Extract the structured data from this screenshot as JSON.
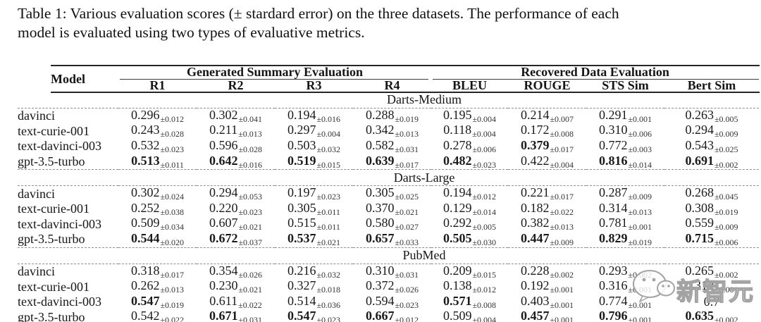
{
  "caption": {
    "line1": "Table 1: Various evaluation scores (± stardard error) on the three datasets. The performance of each",
    "line2": "model is evaluated using two types of evaluative metrics."
  },
  "table": {
    "model_header": "Model",
    "group_headers": [
      {
        "label": "Generated Summary Evaluation",
        "span": 4
      },
      {
        "label": "Recovered Data Evaluation",
        "span": 4
      }
    ],
    "metric_headers": [
      "R1",
      "R2",
      "R3",
      "R4",
      "BLEU",
      "ROUGE",
      "STS Sim",
      "Bert Sim"
    ],
    "sections": [
      {
        "name": "Darts-Medium",
        "rows": [
          {
            "model": "davinci",
            "cells": [
              {
                "v": "0.296",
                "e": "±0.012",
                "b": 0
              },
              {
                "v": "0.302",
                "e": "±0.041",
                "b": 0
              },
              {
                "v": "0.194",
                "e": "±0.016",
                "b": 0
              },
              {
                "v": "0.288",
                "e": "±0.019",
                "b": 0
              },
              {
                "v": "0.195",
                "e": "±0.004",
                "b": 0
              },
              {
                "v": "0.214",
                "e": "±0.007",
                "b": 0
              },
              {
                "v": "0.291",
                "e": "±0.001",
                "b": 0
              },
              {
                "v": "0.263",
                "e": "±0.005",
                "b": 0
              }
            ]
          },
          {
            "model": "text-curie-001",
            "cells": [
              {
                "v": "0.243",
                "e": "±0.028",
                "b": 0
              },
              {
                "v": "0.211",
                "e": "±0.013",
                "b": 0
              },
              {
                "v": "0.297",
                "e": "±0.004",
                "b": 0
              },
              {
                "v": "0.342",
                "e": "±0.013",
                "b": 0
              },
              {
                "v": "0.118",
                "e": "±0.004",
                "b": 0
              },
              {
                "v": "0.172",
                "e": "±0.008",
                "b": 0
              },
              {
                "v": "0.310",
                "e": "±0.006",
                "b": 0
              },
              {
                "v": "0.294",
                "e": "±0.009",
                "b": 0
              }
            ]
          },
          {
            "model": "text-davinci-003",
            "cells": [
              {
                "v": "0.532",
                "e": "±0.023",
                "b": 0
              },
              {
                "v": "0.596",
                "e": "±0.028",
                "b": 0
              },
              {
                "v": "0.503",
                "e": "±0.032",
                "b": 0
              },
              {
                "v": "0.582",
                "e": "±0.031",
                "b": 0
              },
              {
                "v": "0.278",
                "e": "±0.006",
                "b": 0
              },
              {
                "v": "0.379",
                "e": "±0.017",
                "b": 1
              },
              {
                "v": "0.772",
                "e": "±0.003",
                "b": 0
              },
              {
                "v": "0.543",
                "e": "±0.025",
                "b": 0
              }
            ]
          },
          {
            "model": "gpt-3.5-turbo",
            "cells": [
              {
                "v": "0.513",
                "e": "±0.011",
                "b": 1
              },
              {
                "v": "0.642",
                "e": "±0.016",
                "b": 1
              },
              {
                "v": "0.519",
                "e": "±0.015",
                "b": 1
              },
              {
                "v": "0.639",
                "e": "±0.017",
                "b": 1
              },
              {
                "v": "0.482",
                "e": "±0.023",
                "b": 1
              },
              {
                "v": "0.422",
                "e": "±0.004",
                "b": 0
              },
              {
                "v": "0.816",
                "e": "±0.014",
                "b": 1
              },
              {
                "v": "0.691",
                "e": "±0.002",
                "b": 1
              }
            ]
          }
        ]
      },
      {
        "name": "Darts-Large",
        "rows": [
          {
            "model": "davinci",
            "cells": [
              {
                "v": "0.302",
                "e": "±0.024",
                "b": 0
              },
              {
                "v": "0.294",
                "e": "±0.053",
                "b": 0
              },
              {
                "v": "0.197",
                "e": "±0.023",
                "b": 0
              },
              {
                "v": "0.305",
                "e": "±0.025",
                "b": 0
              },
              {
                "v": "0.194",
                "e": "±0.012",
                "b": 0
              },
              {
                "v": "0.221",
                "e": "±0.017",
                "b": 0
              },
              {
                "v": "0.287",
                "e": "±0.009",
                "b": 0
              },
              {
                "v": "0.268",
                "e": "±0.045",
                "b": 0
              }
            ]
          },
          {
            "model": "text-curie-001",
            "cells": [
              {
                "v": "0.252",
                "e": "±0.038",
                "b": 0
              },
              {
                "v": "0.220",
                "e": "±0.023",
                "b": 0
              },
              {
                "v": "0.305",
                "e": "±0.011",
                "b": 0
              },
              {
                "v": "0.370",
                "e": "±0.021",
                "b": 0
              },
              {
                "v": "0.129",
                "e": "±0.014",
                "b": 0
              },
              {
                "v": "0.182",
                "e": "±0.022",
                "b": 0
              },
              {
                "v": "0.314",
                "e": "±0.013",
                "b": 0
              },
              {
                "v": "0.308",
                "e": "±0.019",
                "b": 0
              }
            ]
          },
          {
            "model": "text-davinci-003",
            "cells": [
              {
                "v": "0.509",
                "e": "±0.034",
                "b": 0
              },
              {
                "v": "0.607",
                "e": "±0.021",
                "b": 0
              },
              {
                "v": "0.515",
                "e": "±0.011",
                "b": 0
              },
              {
                "v": "0.580",
                "e": "±0.027",
                "b": 0
              },
              {
                "v": "0.292",
                "e": "±0.005",
                "b": 0
              },
              {
                "v": "0.382",
                "e": "±0.013",
                "b": 0
              },
              {
                "v": "0.781",
                "e": "±0.001",
                "b": 0
              },
              {
                "v": "0.559",
                "e": "±0.009",
                "b": 0
              }
            ]
          },
          {
            "model": "gpt-3.5-turbo",
            "cells": [
              {
                "v": "0.544",
                "e": "±0.020",
                "b": 1
              },
              {
                "v": "0.672",
                "e": "±0.037",
                "b": 1
              },
              {
                "v": "0.537",
                "e": "±0.021",
                "b": 1
              },
              {
                "v": "0.657",
                "e": "±0.033",
                "b": 1
              },
              {
                "v": "0.505",
                "e": "±0.030",
                "b": 1
              },
              {
                "v": "0.447",
                "e": "±0.009",
                "b": 1
              },
              {
                "v": "0.829",
                "e": "±0.019",
                "b": 1
              },
              {
                "v": "0.715",
                "e": "±0.006",
                "b": 1
              }
            ]
          }
        ]
      },
      {
        "name": "PubMed",
        "rows": [
          {
            "model": "davinci",
            "cells": [
              {
                "v": "0.318",
                "e": "±0.017",
                "b": 0
              },
              {
                "v": "0.354",
                "e": "±0.026",
                "b": 0
              },
              {
                "v": "0.216",
                "e": "±0.032",
                "b": 0
              },
              {
                "v": "0.310",
                "e": "±0.031",
                "b": 0
              },
              {
                "v": "0.209",
                "e": "±0.015",
                "b": 0
              },
              {
                "v": "0.228",
                "e": "±0.002",
                "b": 0
              },
              {
                "v": "0.293",
                "e": "±0.002",
                "b": 0
              },
              {
                "v": "0.265",
                "e": "±0.002",
                "b": 0
              }
            ]
          },
          {
            "model": "text-curie-001",
            "cells": [
              {
                "v": "0.262",
                "e": "±0.013",
                "b": 0
              },
              {
                "v": "0.230",
                "e": "±0.021",
                "b": 0
              },
              {
                "v": "0.327",
                "e": "±0.018",
                "b": 0
              },
              {
                "v": "0.372",
                "e": "±0.026",
                "b": 0
              },
              {
                "v": "0.138",
                "e": "±0.012",
                "b": 0
              },
              {
                "v": "0.192",
                "e": "±0.001",
                "b": 0
              },
              {
                "v": "0.316",
                "e": "±0.001",
                "b": 0
              },
              {
                "v": "0.310",
                "e": "±0.001",
                "b": 0
              }
            ]
          },
          {
            "model": "text-davinci-003",
            "cells": [
              {
                "v": "0.547",
                "e": "±0.019",
                "b": 1
              },
              {
                "v": "0.611",
                "e": "±0.022",
                "b": 0
              },
              {
                "v": "0.514",
                "e": "±0.036",
                "b": 0
              },
              {
                "v": "0.594",
                "e": "±0.023",
                "b": 0
              },
              {
                "v": "0.571",
                "e": "±0.008",
                "b": 1
              },
              {
                "v": "0.403",
                "e": "±0.001",
                "b": 0
              },
              {
                "v": "0.774",
                "e": "±0.001",
                "b": 0
              },
              {
                "v": "0.7",
                "e": "",
                "b": 0
              }
            ]
          },
          {
            "model": "gpt-3.5-turbo",
            "cells": [
              {
                "v": "0.542",
                "e": "±0.022",
                "b": 0
              },
              {
                "v": "0.671",
                "e": "±0.031",
                "b": 1
              },
              {
                "v": "0.547",
                "e": "±0.023",
                "b": 1
              },
              {
                "v": "0.667",
                "e": "±0.012",
                "b": 1
              },
              {
                "v": "0.509",
                "e": "±0.004",
                "b": 0
              },
              {
                "v": "0.457",
                "e": "±0.001",
                "b": 1
              },
              {
                "v": "0.796",
                "e": "±0.001",
                "b": 1
              },
              {
                "v": "0.635",
                "e": "±0.002",
                "b": 1
              }
            ]
          }
        ]
      }
    ]
  },
  "watermark": {
    "text": "新智元"
  }
}
